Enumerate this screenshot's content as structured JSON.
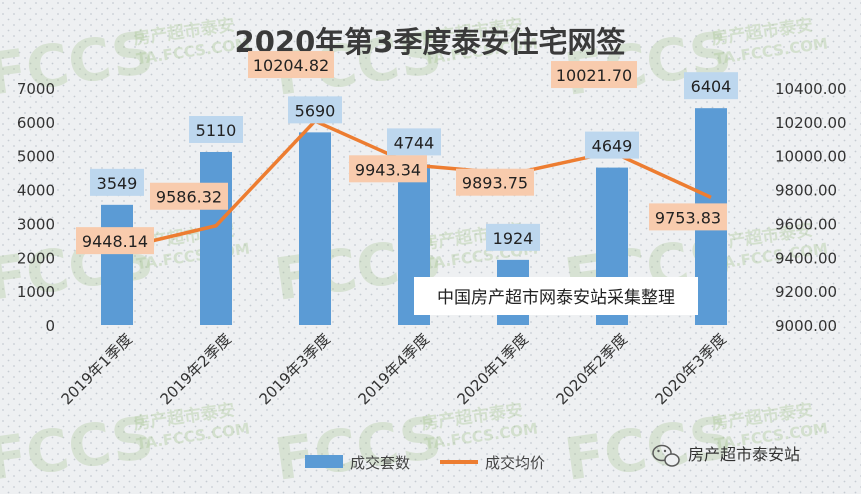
{
  "chart_data": {
    "type": "bar+line",
    "title": "2020年第3季度泰安住宅网签",
    "categories": [
      "2019年1季度",
      "2019年2季度",
      "2019年3季度",
      "2019年4季度",
      "2020年1季度",
      "2020年2季度",
      "2020年3季度"
    ],
    "series": [
      {
        "name": "成交套数",
        "type": "bar",
        "axis": "left",
        "values": [
          3549,
          5110,
          5690,
          4744,
          1924,
          4649,
          6404
        ],
        "labels": [
          "3549",
          "5110",
          "5690",
          "4744",
          "1924",
          "4649",
          "6404"
        ]
      },
      {
        "name": "成交均价",
        "type": "line",
        "axis": "right",
        "values": [
          9448.14,
          9586.32,
          10204.82,
          9943.34,
          9893.75,
          10021.7,
          9753.83
        ],
        "labels": [
          "9448.14",
          "9586.32",
          "10204.82",
          "9943.34",
          "9893.75",
          "10021.70",
          "9753.83"
        ]
      }
    ],
    "y_left": {
      "min": 0,
      "max": 7000,
      "ticks": [
        "0",
        "1000",
        "2000",
        "3000",
        "4000",
        "5000",
        "6000",
        "7000"
      ]
    },
    "y_right": {
      "min": 9000,
      "max": 10400,
      "ticks": [
        "9000.00",
        "9200.00",
        "9400.00",
        "9600.00",
        "9800.00",
        "10000.00",
        "10200.00",
        "10400.00"
      ]
    },
    "annotation": "中国房产超市网泰安站采集整理",
    "legend_position": "bottom",
    "grid": false,
    "colors": {
      "bar": "#5b9bd5",
      "line": "#ed7d31",
      "bar_label_bg": "#bdd7ee",
      "line_label_bg": "#f8cbad",
      "background": "#eef0f2"
    }
  },
  "footer": {
    "brand_text": "房产超市泰安站",
    "brand_icon": "wechat-icon"
  },
  "watermark": {
    "logo_text": "FCCS",
    "brand_cn": "房产超市泰安",
    "brand_url": "TA.FCCS.COM"
  }
}
